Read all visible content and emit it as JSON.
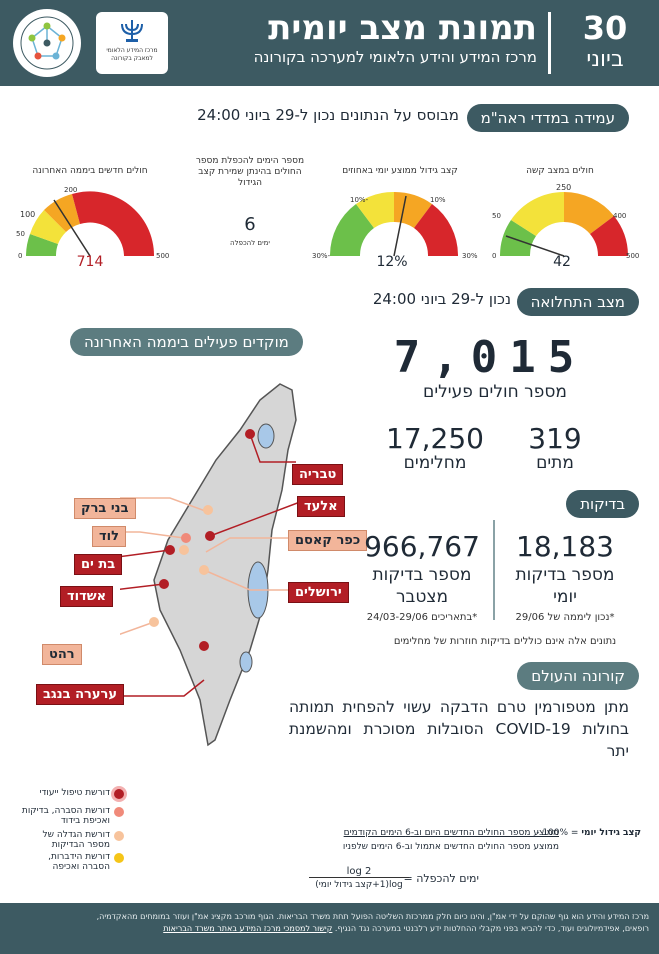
{
  "header": {
    "day": "30",
    "month": "ביוני",
    "title": "תמונת מצב יומית",
    "subtitle": "מרכז המידע והידע הלאומי למערכה בקורונה",
    "gov_logo_text": "מרכז המידע הלאומי למאבק בקורונה"
  },
  "measures": {
    "pill": "עמידה במדדי ראה\"מ",
    "note": "מבוסס על הנתונים נכון ל-29 ביוני 24:00",
    "gauges": [
      {
        "title": "חולים במצב קשה",
        "ticks": [
          "0",
          "50",
          "250",
          "400",
          "500"
        ],
        "value": "42"
      },
      {
        "title": "קצב גידול ממוצע יומי באחוזים",
        "ticks": [
          "-30%",
          "-10%",
          "10%",
          "30%"
        ],
        "value": "12%"
      },
      {
        "title": "מספר הימים להכפלת מספר החולים בהינתן שמירת קצב הגידול",
        "value": "6",
        "unit": "ימים להכפלה"
      },
      {
        "title": "חולים חדשים ביממה האחרונה",
        "ticks": [
          "0",
          "50",
          "100",
          "200",
          "500"
        ],
        "value": "714"
      }
    ]
  },
  "outbreak": {
    "pill": "מצב התחלואה",
    "note": "נכון ל-29 ביוני 24:00",
    "active_value": "7,015",
    "active_label": "מספר חולים פעילים",
    "recovered_value": "17,250",
    "recovered_label": "מחלימים",
    "deaths_value": "319",
    "deaths_label": "מתים"
  },
  "hotspots": {
    "pill": "מוקדים פעילים ביממה האחרונה",
    "cities": [
      "טבריה",
      "אלעד",
      "בני ברק",
      "לוד",
      "כפר קאסם",
      "בת ים",
      "ירושלים",
      "אשדוד",
      "רהט",
      "ערערה בנגב"
    ],
    "legend": [
      {
        "label": "דורשת טיפול ייעודי",
        "color": "#b21e25"
      },
      {
        "label": "דורשת הסברה, בדיקות ואכיפת בידוד",
        "color": "#f08a7a"
      },
      {
        "label": "דורשת הגדלה של מספר הבדיקות",
        "color": "#f7c39c"
      },
      {
        "label": "דורשת הידברות, הסברה ואכיפה",
        "color": "#f5c518"
      }
    ]
  },
  "tests": {
    "pill": "בדיקות",
    "daily_value": "18,183",
    "daily_label": "מספר בדיקות יומי",
    "daily_note": "*נכון ליממה של 29/06",
    "total_value": "966,767",
    "total_label": "מספר בדיקות מצטבר",
    "total_note": "*בתאריכים 24/03-29/06",
    "disclaimer": "נתונים אלה אינם כוללים בדיקות חוזרות של מחלימים"
  },
  "world": {
    "pill": "קורונה והעולם",
    "text": "מתן מטפורמין טרם הדבקה עשוי להפחית תמותה בחולות COVID-19 הסובלות מסוכרת ומהשמנת יתר"
  },
  "formula": {
    "growth_label": "קצב גידול יומי",
    "growth_eq": "= 100% -",
    "growth_num": "ממוצע מספר החולים החדשים היום וב-6 הימים הקודמים",
    "growth_den": "ממוצע מספר החולים החדשים אתמול וב-6 הימים שלפניו",
    "doubling_label": "ימים להכפלה",
    "doubling_eq": "=",
    "doubling_num": "log 2",
    "doubling_den": "log(1+קצב גידול יומי)"
  },
  "footer": {
    "line1": "מרכז המידע והידע הוא גוף שהוקם על ידי אמ\"ן, והינו כיום חלק ממרכזת השליטה הפועל תחת משרד הבריאות. הגוף מורכב מקצינ אמ\"ן ועוזר במומחים מהאקדמיה,",
    "line2": "רופאים, אפידמיולוגים ועוד, כדי להביא בפני מקבלי ההחלטות ידע רלבנטי במערכה נגד הנגיף.",
    "link": "קישור למסמכי מרכז המידע באתר משרד הבריאות"
  },
  "colors": {
    "header_bg": "#3d5a62",
    "red": "#d7262b",
    "orange": "#f5a623",
    "yellow": "#f3e23a",
    "green": "#6cc04a"
  }
}
